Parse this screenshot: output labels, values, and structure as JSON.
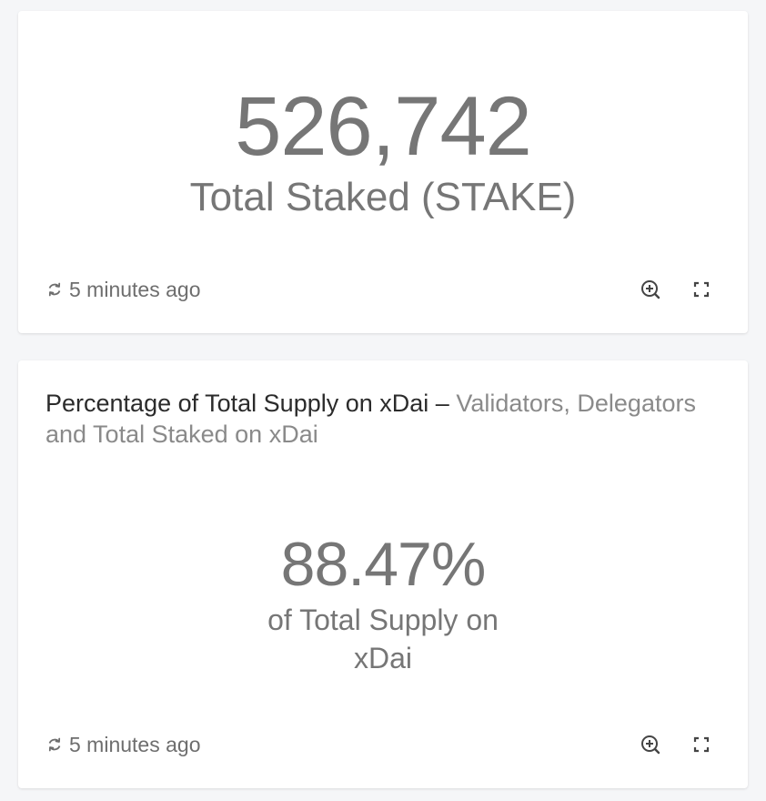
{
  "cards": [
    {
      "value": "526,742",
      "label": "Total Staked (STAKE)",
      "updated": "5 minutes ago"
    },
    {
      "title": "Percentage of Total Supply on xDai",
      "separator": "–",
      "subtitle": "Validators, Delegators and Total Staked on xDai",
      "value": "88.47%",
      "label": "of Total Supply on xDai",
      "updated": "5 minutes ago"
    }
  ],
  "icons": {
    "refresh": "refresh-icon",
    "zoom": "zoom-in-icon",
    "fullscreen": "fullscreen-icon"
  },
  "colors": {
    "background": "#f5f6f8",
    "card": "#ffffff",
    "value_text": "#767676",
    "title_text": "#2b2b2b",
    "subtitle_text": "#8a8a8a"
  }
}
